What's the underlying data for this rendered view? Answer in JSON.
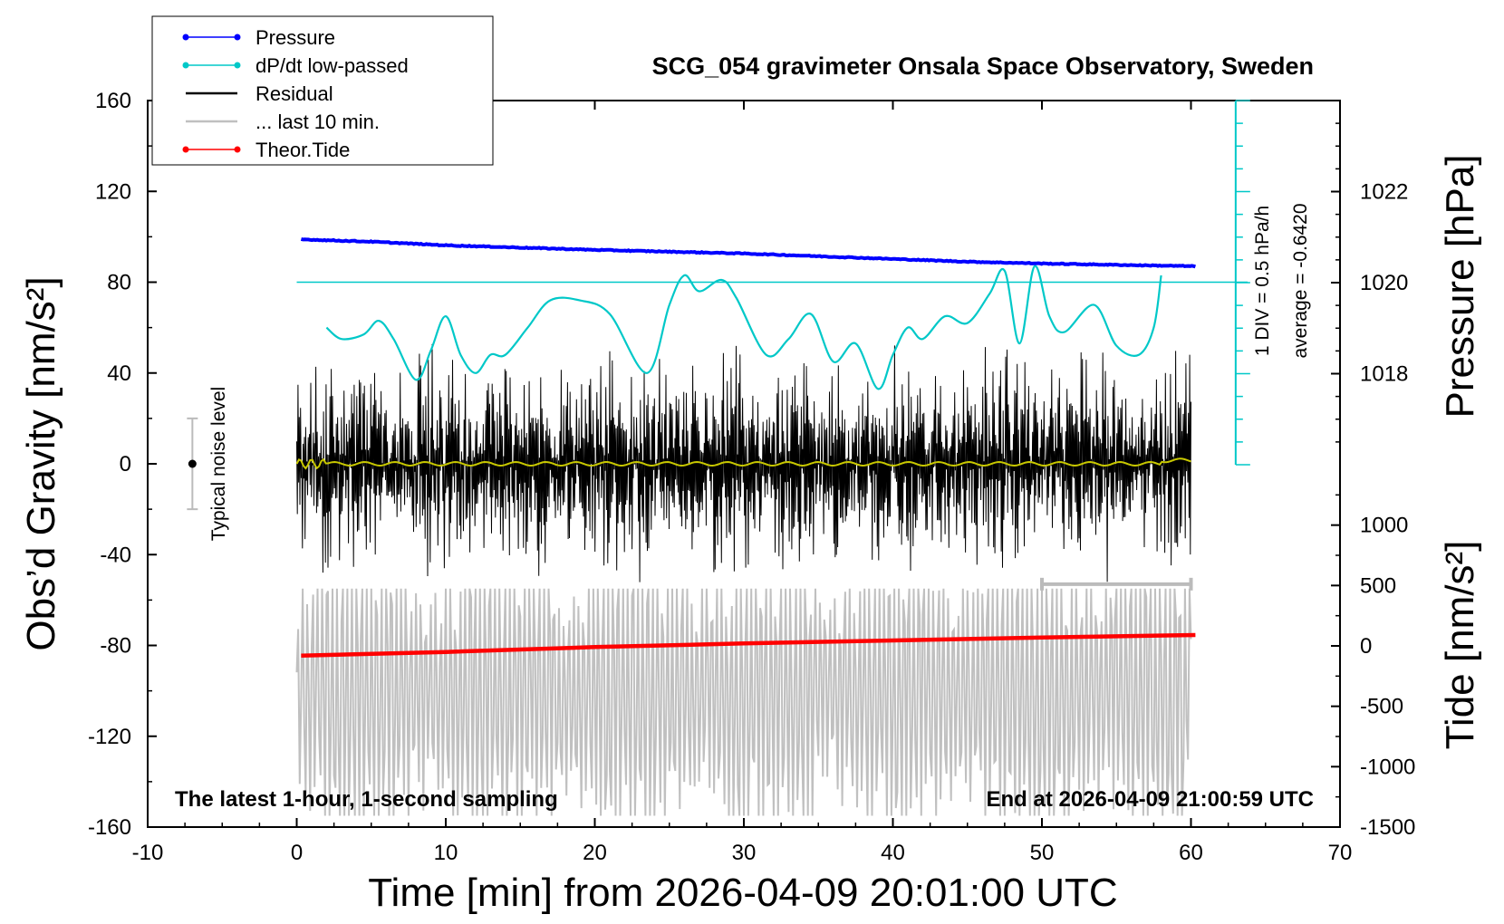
{
  "chart_data": {
    "type": "line",
    "title": "SCG_054 gravimeter Onsala Space Observatory, Sweden",
    "xlabel": "Time [min] from 2026-04-09 20:01:00 UTC",
    "ylabel": "Obs’d Gravity [nm/s²]",
    "ylabel_right_top": "Pressure [hPa]",
    "ylabel_right_bottom": "Tide [nm/s²]",
    "xlim": [
      -10,
      70
    ],
    "ylim": [
      -160,
      160
    ],
    "xticks": [
      "-10",
      "0",
      "10",
      "20",
      "30",
      "40",
      "50",
      "60",
      "70"
    ],
    "yticks": [
      "160",
      "120",
      "80",
      "40",
      "0",
      "-40",
      "-80",
      "-120",
      "-160"
    ],
    "pressure_axis": {
      "ticks": [
        "1022",
        "1020",
        "1018"
      ],
      "values": [
        1022,
        1020,
        1018
      ],
      "range": [
        1016,
        1024
      ]
    },
    "tide_axis": {
      "ticks": [
        "1000",
        "500",
        "0",
        "-500",
        "-1000",
        "-1500"
      ],
      "values": [
        1000,
        500,
        0,
        -500,
        -1000,
        -1500
      ],
      "range": [
        -1500,
        1500
      ]
    },
    "legend": [
      {
        "label": "Pressure",
        "color": "#0000ff",
        "marker": true
      },
      {
        "label": "dP/dt low-passed",
        "color": "#00c8c8",
        "marker": true
      },
      {
        "label": "Residual",
        "color": "#000000",
        "marker": false
      },
      {
        "label": "... last 10 min.",
        "color": "#c0c0c0",
        "marker": false
      },
      {
        "label": "Theor.Tide",
        "color": "#ff0000",
        "marker": true
      }
    ],
    "legend_position": "top-left",
    "annotations": {
      "bottom_left": "The latest 1-hour, 1-second sampling",
      "bottom_right": "End at 2026-04-09 21:00:59 UTC",
      "noise": "Typical noise level",
      "div_scale": "1 DIV = 0.5 hPa/h",
      "average": "average = -0.6420"
    },
    "noise_bar": {
      "x": -7,
      "center": 0,
      "half_range": 20
    },
    "series": [
      {
        "name": "Pressure",
        "color": "#0000ff",
        "axis": "pressure",
        "x": [
          0.3,
          5,
          10,
          15,
          20,
          25,
          30,
          35,
          40,
          45,
          50,
          55,
          60.3
        ],
        "y": [
          1020.95,
          1020.9,
          1020.82,
          1020.77,
          1020.72,
          1020.68,
          1020.64,
          1020.58,
          1020.52,
          1020.46,
          1020.42,
          1020.39,
          1020.36
        ]
      },
      {
        "name": "dP/dt low-passed",
        "color": "#00c8c8",
        "axis": "gravity",
        "x": [
          2,
          3,
          4.5,
          5.5,
          6.5,
          8,
          9,
          10,
          11,
          12,
          13,
          14,
          15.5,
          17,
          19,
          21,
          23.5,
          25,
          26,
          27,
          28.5,
          29.5,
          31.5,
          33,
          34.5,
          36,
          37.5,
          39,
          40,
          41,
          42,
          43.5,
          45,
          46.5,
          47.5,
          48.5,
          49.5,
          50.5,
          51.5,
          53.5,
          55,
          56.5,
          57.5,
          58
        ],
        "y": [
          60,
          55,
          57,
          63,
          55,
          37,
          50,
          65,
          48,
          40,
          48,
          48,
          60,
          72,
          72,
          66,
          40,
          70,
          83,
          76,
          81,
          73,
          48,
          55,
          66,
          45,
          53,
          33,
          48,
          60,
          55,
          65,
          62,
          75,
          85,
          53,
          87,
          65,
          58,
          70,
          52,
          48,
          60,
          83
        ]
      },
      {
        "name": "Residual",
        "color": "#000000",
        "axis": "gravity",
        "x_range": [
          0,
          60
        ],
        "amplitude_nm_s2": 45
      },
      {
        "name": "... last 10 min.",
        "color": "#c0c0c0",
        "axis": "gravity",
        "x_range": [
          0,
          60
        ],
        "window_x": [
          50,
          60
        ]
      },
      {
        "name": "Theor.Tide",
        "color": "#ff0000",
        "axis": "tide",
        "x": [
          0.3,
          10,
          20,
          30,
          40,
          50,
          60.3
        ],
        "y": [
          -80,
          -50,
          -10,
          20,
          45,
          70,
          90
        ]
      }
    ]
  }
}
